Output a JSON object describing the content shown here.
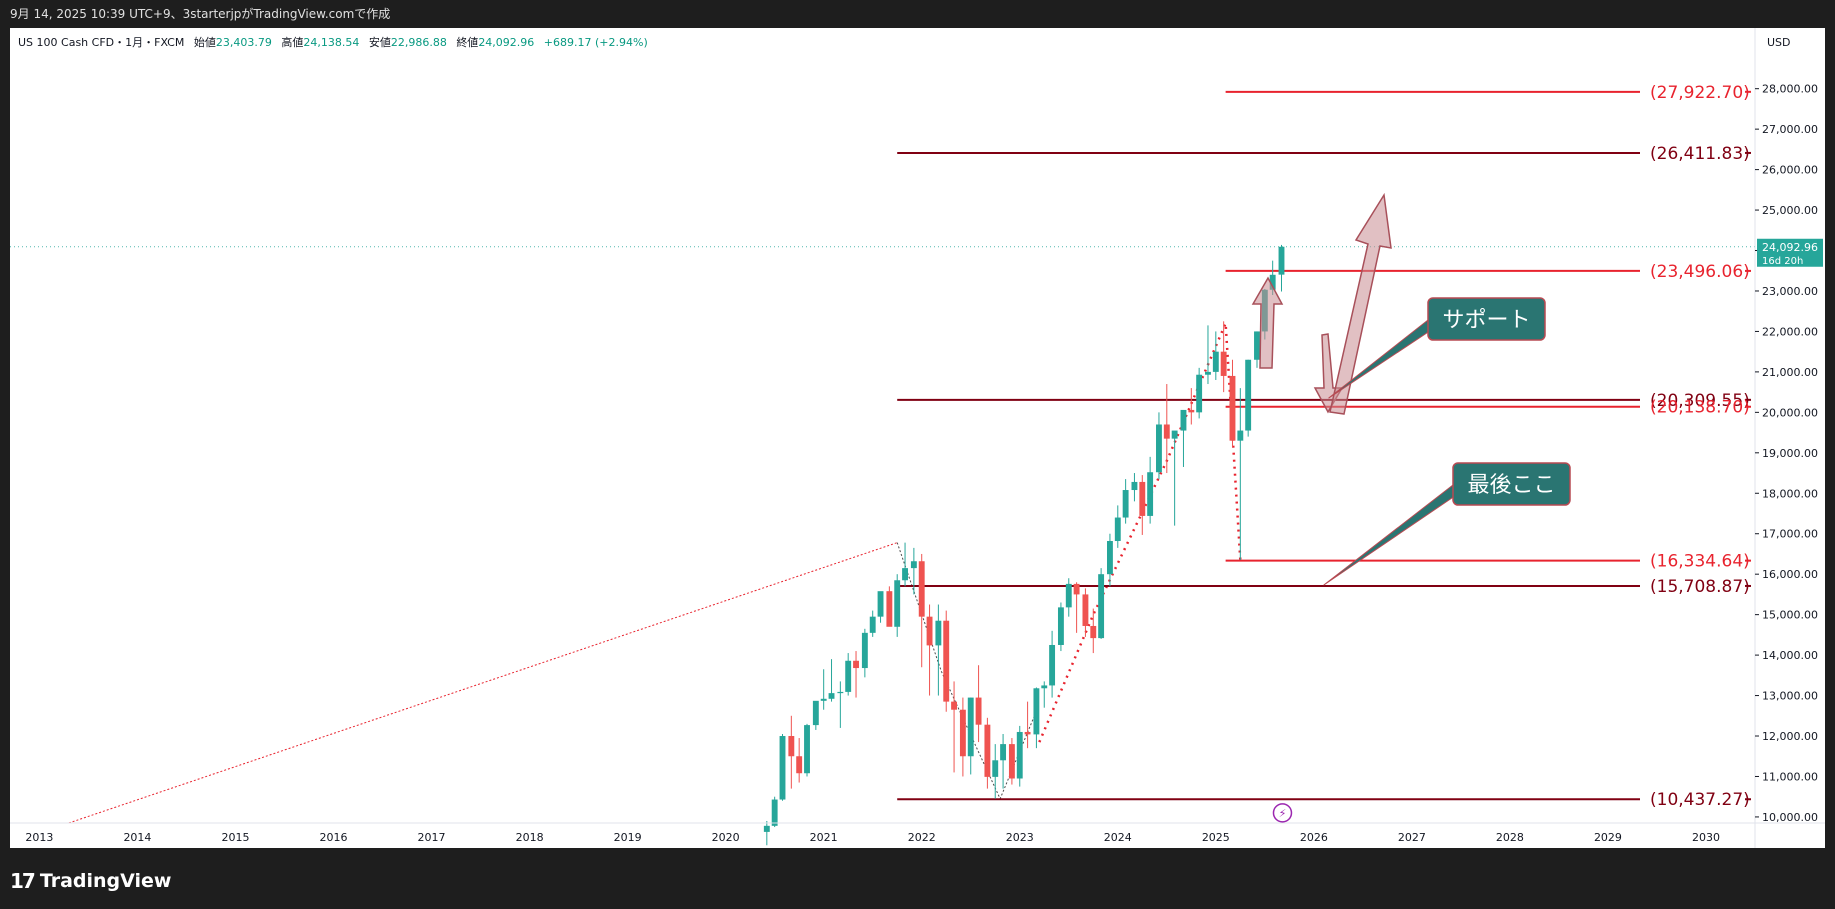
{
  "header": {
    "caption": "9月 14, 2025 10:39 UTC+9、3starterjpがTradingView.comで作成"
  },
  "legend": {
    "symbol": "US 100 Cash CFD・1月・FXCM",
    "open_label": "始値",
    "open": "23,403.79",
    "high_label": "高値",
    "high": "24,138.54",
    "low_label": "安値",
    "low": "22,986.88",
    "close_label": "終値",
    "close": "24,092.96",
    "change": "+689.17 (+2.94%)"
  },
  "footer": {
    "brand": "TradingView"
  },
  "colors": {
    "up": "#26a69a",
    "down": "#ef5350",
    "level_red": "#e8232e",
    "level_dark": "#800012",
    "callout": "#2a7572",
    "arrow": "#c98c91",
    "price_tag": "#26a69a"
  },
  "chart_data": {
    "type": "candlestick",
    "interval": "1月",
    "currency": "USD",
    "y_ticks": [
      "10,000.00",
      "11,000.00",
      "12,000.00",
      "13,000.00",
      "14,000.00",
      "15,000.00",
      "16,000.00",
      "17,000.00",
      "18,000.00",
      "19,000.00",
      "20,000.00",
      "21,000.00",
      "22,000.00",
      "23,000.00",
      "24,000.00",
      "25,000.00",
      "26,000.00",
      "27,000.00",
      "28,000.00"
    ],
    "y_range": [
      9850,
      29500
    ],
    "x_ticks": [
      "2013",
      "2014",
      "2015",
      "2016",
      "2017",
      "2018",
      "2019",
      "2020",
      "2021",
      "2022",
      "2023",
      "2024",
      "2025",
      "2026",
      "2027",
      "2028",
      "2029",
      "2030"
    ],
    "x_range": [
      2012.7,
      2030.5
    ],
    "current_price": {
      "label": "24,092.96",
      "countdown": "16d 20h",
      "value": 24092.96
    },
    "levels": [
      {
        "label": "(27,922.70)",
        "value": 27922.7,
        "from": 2025.1,
        "color": "#e8232e"
      },
      {
        "label": "(26,411.83)",
        "value": 26411.83,
        "from": 2021.75,
        "color": "#800012"
      },
      {
        "label": "(23,496.06)",
        "value": 23496.06,
        "from": 2025.1,
        "color": "#e8232e"
      },
      {
        "label": "(20,309.55)",
        "value": 20309.55,
        "from": 2021.75,
        "color": "#800012"
      },
      {
        "label": "(20,138.70)",
        "value": 20138.7,
        "from": 2025.1,
        "color": "#e8232e"
      },
      {
        "label": "(16,334.64)",
        "value": 16334.64,
        "from": 2025.1,
        "color": "#e8232e"
      },
      {
        "label": "(15,708.87)",
        "value": 15708.87,
        "from": 2021.75,
        "color": "#800012"
      },
      {
        "label": "(10,437.27)",
        "value": 10437.27,
        "from": 2021.75,
        "color": "#800012"
      }
    ],
    "callouts": [
      {
        "text": "サポート",
        "tip_x": 2026.15,
        "tip_y": 20350
      },
      {
        "text": "最後ここ",
        "tip_x": 2026.1,
        "tip_y": 15730
      }
    ],
    "candles": [
      [
        2020.42,
        9630,
        9900,
        9300,
        9780
      ],
      [
        2020.5,
        9780,
        10500,
        9750,
        10430
      ],
      [
        2020.58,
        10430,
        12050,
        10400,
        12000
      ],
      [
        2020.67,
        12000,
        12500,
        10700,
        11500
      ],
      [
        2020.75,
        11500,
        11950,
        10850,
        11080
      ],
      [
        2020.83,
        11080,
        12300,
        11000,
        12270
      ],
      [
        2020.92,
        12270,
        12850,
        12150,
        12870
      ],
      [
        2021.0,
        12870,
        13650,
        12650,
        12920
      ],
      [
        2021.08,
        12920,
        13900,
        12850,
        13060
      ],
      [
        2021.17,
        13060,
        13350,
        12200,
        13090
      ],
      [
        2021.25,
        13090,
        14050,
        13000,
        13860
      ],
      [
        2021.33,
        13860,
        14100,
        12950,
        13680
      ],
      [
        2021.42,
        13680,
        14650,
        13450,
        14550
      ],
      [
        2021.5,
        14550,
        15100,
        14450,
        14950
      ],
      [
        2021.58,
        14950,
        15550,
        14800,
        15580
      ],
      [
        2021.67,
        15580,
        15700,
        14750,
        14700
      ],
      [
        2021.75,
        14700,
        16000,
        14450,
        15850
      ],
      [
        2021.83,
        15850,
        16780,
        15700,
        16150
      ],
      [
        2021.92,
        16150,
        16650,
        15500,
        16320
      ],
      [
        2022.0,
        16320,
        16500,
        13700,
        14950
      ],
      [
        2022.08,
        14950,
        15250,
        13000,
        14240
      ],
      [
        2022.17,
        14240,
        15250,
        13000,
        14850
      ],
      [
        2022.25,
        14850,
        15100,
        12600,
        12850
      ],
      [
        2022.33,
        12850,
        13350,
        11100,
        12650
      ],
      [
        2022.42,
        12650,
        12950,
        11000,
        11500
      ],
      [
        2022.5,
        11500,
        12950,
        11050,
        12950
      ],
      [
        2022.58,
        12950,
        13750,
        11850,
        12280
      ],
      [
        2022.67,
        12280,
        12450,
        10700,
        10990
      ],
      [
        2022.75,
        10990,
        11800,
        10450,
        11400
      ],
      [
        2022.83,
        11400,
        12050,
        10700,
        11800
      ],
      [
        2022.92,
        11800,
        11950,
        10800,
        10950
      ],
      [
        2023.0,
        10950,
        12250,
        10750,
        12100
      ],
      [
        2023.08,
        12100,
        12850,
        11700,
        12040
      ],
      [
        2023.17,
        12040,
        13200,
        11700,
        13180
      ],
      [
        2023.25,
        13180,
        13350,
        12700,
        13250
      ],
      [
        2023.33,
        13250,
        14600,
        12950,
        14250
      ],
      [
        2023.42,
        14250,
        15300,
        14100,
        15180
      ],
      [
        2023.5,
        15180,
        15900,
        14950,
        15760
      ],
      [
        2023.58,
        15760,
        15800,
        14550,
        15500
      ],
      [
        2023.67,
        15500,
        15650,
        14450,
        14720
      ],
      [
        2023.75,
        14720,
        15150,
        14050,
        14420
      ],
      [
        2023.83,
        14420,
        16150,
        14400,
        16000
      ],
      [
        2023.92,
        16000,
        17000,
        15700,
        16820
      ],
      [
        2024.0,
        16820,
        17700,
        16650,
        17400
      ],
      [
        2024.08,
        17400,
        18350,
        17250,
        18080
      ],
      [
        2024.17,
        18080,
        18500,
        17800,
        18280
      ],
      [
        2024.25,
        18280,
        18450,
        16970,
        17440
      ],
      [
        2024.33,
        17440,
        18900,
        17250,
        18520
      ],
      [
        2024.42,
        18520,
        20000,
        18350,
        19700
      ],
      [
        2024.5,
        19700,
        20700,
        18500,
        19350
      ],
      [
        2024.58,
        19350,
        19500,
        17200,
        19550
      ],
      [
        2024.67,
        19550,
        19950,
        18650,
        20060
      ],
      [
        2024.75,
        20060,
        20600,
        19700,
        20000
      ],
      [
        2024.83,
        20000,
        21100,
        19850,
        20930
      ],
      [
        2024.92,
        20930,
        22150,
        20700,
        21000
      ],
      [
        2025.0,
        21000,
        22000,
        20800,
        21500
      ],
      [
        2025.08,
        21500,
        22250,
        20500,
        20900
      ],
      [
        2025.17,
        20900,
        21300,
        19150,
        19300
      ],
      [
        2025.25,
        19300,
        20600,
        16350,
        19550
      ],
      [
        2025.33,
        19550,
        21300,
        19400,
        21300
      ],
      [
        2025.42,
        21300,
        22000,
        21100,
        22000
      ],
      [
        2025.5,
        22000,
        23050,
        21800,
        23030
      ],
      [
        2025.58,
        23030,
        23750,
        22900,
        23400
      ],
      [
        2025.67,
        23403.79,
        24138.54,
        22986.88,
        24092.96
      ]
    ],
    "dotted_lines": [
      {
        "color": "#e8232e",
        "points": [
          [
            2013.3,
            9850
          ],
          [
            2021.75,
            16780
          ]
        ]
      },
      {
        "color": "#4a4a4a",
        "points": [
          [
            2021.75,
            16780
          ],
          [
            2022.2,
            13600
          ],
          [
            2022.8,
            10450
          ],
          [
            2023.15,
            12500
          ]
        ]
      },
      {
        "color": "#e8232e",
        "bold": true,
        "points": [
          [
            2023.2,
            11850
          ],
          [
            2023.75,
            15000
          ],
          [
            2024.5,
            18800
          ],
          [
            2025.1,
            22200
          ],
          [
            2025.25,
            16350
          ]
        ]
      }
    ]
  }
}
